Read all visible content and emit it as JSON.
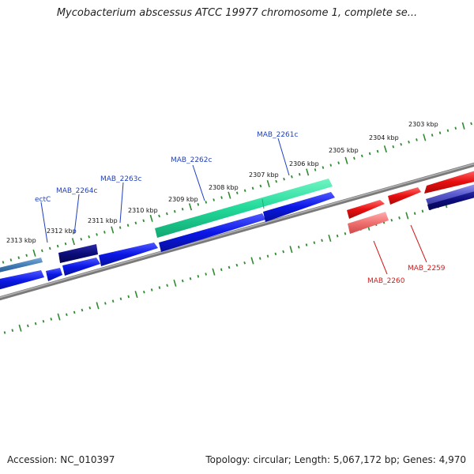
{
  "title": "Mycobacterium abscessus ATCC 19977 chromosome 1, complete se...",
  "footer": {
    "accession": "Accession: NC_010397",
    "stats": "Topology: circular; Length: 5,067,172 bp; Genes: 4,970"
  },
  "colors": {
    "backbone": "#8a8a8a",
    "tick": "#2e8b2e",
    "fwd_label": "#1f3fbf",
    "rev_label": "#d11a1a",
    "cds_blue": "#0a17e6",
    "cds_teal": "#22d99a",
    "cds_navy": "#0c0c7a",
    "cds_steel": "#3f79b3",
    "cds_red": "#e80f0f",
    "cds_pink": "#f07070",
    "cds_purple": "#5a5acf"
  },
  "ticks": [
    "2313 kbp",
    "2312 kbp",
    "2311 kbp",
    "2310 kbp",
    "2309 kbp",
    "2308 kbp",
    "2307 kbp",
    "2306 kbp",
    "2305 kbp",
    "2304 kbp",
    "2303 kbp"
  ],
  "gene_labels_fwd": [
    "ectC",
    "MAB_2264c",
    "MAB_2263c",
    "MAB_2262c",
    "MAB_2261c"
  ],
  "gene_labels_rev": [
    "MAB_2260",
    "MAB_2259"
  ]
}
